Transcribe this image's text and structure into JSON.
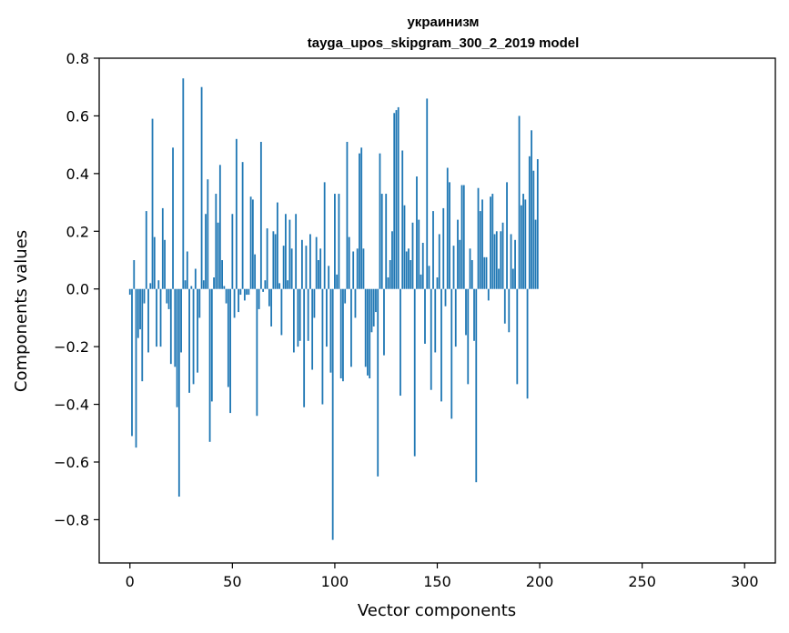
{
  "chart_data": {
    "type": "bar",
    "title": "украинизм",
    "subtitle": "tayga_upos_skipgram_300_2_2019 model",
    "xlabel": "Vector components",
    "ylabel": "Components values",
    "xlim": [
      -15,
      315
    ],
    "ylim": [
      -0.95,
      0.8
    ],
    "xticks": [
      0,
      50,
      100,
      150,
      200,
      250,
      300
    ],
    "xtick_labels": [
      "0",
      "50",
      "100",
      "150",
      "200",
      "250",
      "300"
    ],
    "yticks": [
      -0.8,
      -0.6,
      -0.4,
      -0.2,
      0.0,
      0.2,
      0.4,
      0.6,
      0.8
    ],
    "ytick_labels": [
      "−0.8",
      "−0.6",
      "−0.4",
      "−0.2",
      "0.0",
      "0.2",
      "0.4",
      "0.6",
      "0.8"
    ],
    "bar_color": "#1f77b4",
    "values": [
      -0.02,
      -0.51,
      0.1,
      -0.55,
      -0.17,
      -0.14,
      -0.32,
      -0.05,
      0.27,
      -0.22,
      0.02,
      0.59,
      0.18,
      -0.2,
      0.03,
      -0.2,
      0.28,
      0.17,
      -0.05,
      -0.07,
      -0.26,
      0.49,
      -0.27,
      -0.41,
      -0.72,
      -0.22,
      0.73,
      0.03,
      0.13,
      -0.36,
      0.01,
      -0.33,
      0.07,
      -0.29,
      -0.1,
      0.7,
      0.03,
      0.26,
      0.38,
      -0.53,
      -0.39,
      0.04,
      0.33,
      0.23,
      0.43,
      0.1,
      0.01,
      -0.05,
      -0.34,
      -0.43,
      0.26,
      -0.1,
      0.52,
      -0.08,
      -0.02,
      0.44,
      -0.04,
      -0.02,
      -0.02,
      0.32,
      0.31,
      0.12,
      -0.44,
      -0.07,
      0.51,
      -0.01,
      0.03,
      0.21,
      -0.06,
      -0.13,
      0.2,
      0.19,
      0.3,
      0.02,
      -0.16,
      0.15,
      0.26,
      0.03,
      0.24,
      0.14,
      -0.22,
      0.26,
      -0.2,
      -0.18,
      0.17,
      -0.41,
      0.15,
      -0.18,
      0.19,
      -0.28,
      -0.1,
      0.18,
      0.1,
      0.14,
      -0.4,
      0.37,
      -0.2,
      0.08,
      -0.29,
      -0.87,
      0.33,
      0.05,
      0.33,
      -0.31,
      -0.32,
      -0.05,
      0.51,
      0.18,
      -0.27,
      0.13,
      -0.1,
      0.14,
      0.47,
      0.49,
      0.14,
      -0.27,
      -0.3,
      -0.31,
      -0.15,
      -0.13,
      -0.08,
      -0.65,
      0.47,
      0.33,
      -0.23,
      0.33,
      0.04,
      0.1,
      0.2,
      0.61,
      0.62,
      0.63,
      -0.37,
      0.48,
      0.29,
      0.13,
      0.14,
      0.1,
      0.23,
      -0.58,
      0.39,
      0.24,
      0.05,
      0.16,
      -0.19,
      0.66,
      0.08,
      -0.35,
      0.27,
      -0.22,
      0.04,
      0.19,
      -0.39,
      0.28,
      -0.06,
      0.42,
      0.37,
      -0.45,
      0.15,
      -0.2,
      0.24,
      0.17,
      0.36,
      0.36,
      -0.16,
      -0.33,
      0.14,
      0.1,
      -0.18,
      -0.67,
      0.35,
      0.27,
      0.31,
      0.11,
      0.11,
      -0.04,
      0.32,
      0.33,
      0.19,
      0.2,
      0.07,
      0.2,
      0.23,
      -0.12,
      0.37,
      -0.15,
      0.19,
      0.07,
      0.17,
      -0.33,
      0.6,
      0.29,
      0.33,
      0.31,
      -0.38,
      0.46,
      0.55,
      0.41,
      0.24,
      0.45
    ]
  }
}
